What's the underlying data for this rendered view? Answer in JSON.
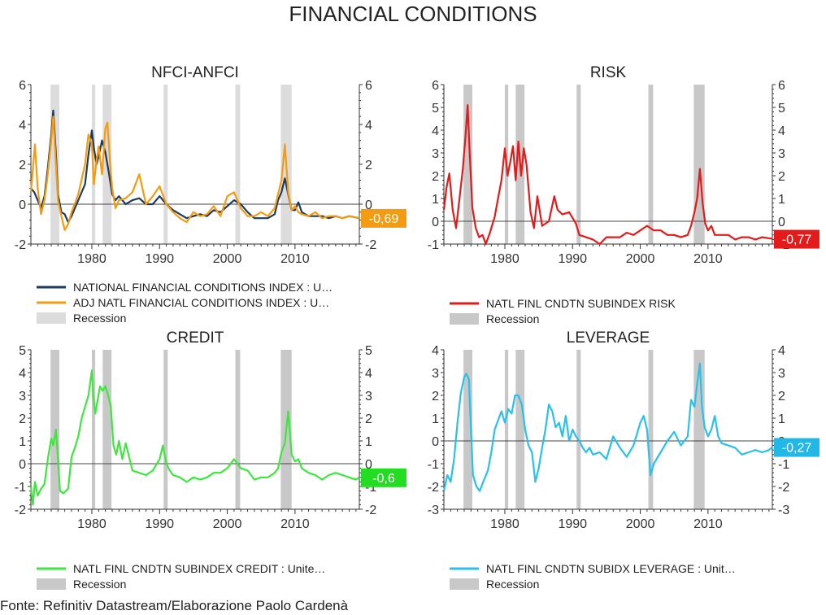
{
  "title": "FINANCIAL CONDITIONS",
  "source": "Fonte: Refinitiv Datastream/Elaborazione Paolo Cardenà",
  "colors": {
    "recession_light": "#dcdcdc",
    "recession_dark": "#c8c8c8"
  },
  "chart_data": [
    {
      "id": "nfci",
      "type": "line",
      "title": "NFCI-ANFCI",
      "ylim": [
        -2,
        6
      ],
      "yticks": [
        -2,
        0,
        2,
        4,
        6
      ],
      "xlim": [
        1971,
        2019.5
      ],
      "xticks": [
        1980,
        1990,
        2000,
        2010
      ],
      "recessions": [
        [
          1973.9,
          1975.2
        ],
        [
          1980.0,
          1980.5
        ],
        [
          1981.6,
          1982.9
        ],
        [
          1990.6,
          1991.2
        ],
        [
          2001.2,
          2001.9
        ],
        [
          2007.9,
          2009.5
        ]
      ],
      "recession_color": "#dcdcdc",
      "end_label": "-0,69",
      "end_label_color": "#f39c12",
      "legend": [
        {
          "label": "NATIONAL FINANCIAL CONDITIONS INDEX : U…",
          "color": "#1f3a5f",
          "kind": "line"
        },
        {
          "label": "ADJ NATL FINANCIAL CONDITIONS INDEX : U…",
          "color": "#f39c12",
          "kind": "line"
        },
        {
          "label": "Recession",
          "color": "#dcdcdc",
          "kind": "box"
        }
      ],
      "series": [
        {
          "name": "NATIONAL FINANCIAL CONDITIONS INDEX",
          "color": "#1f3a5f",
          "x": [
            1971,
            1971.5,
            1972,
            1972.5,
            1973,
            1973.5,
            1974,
            1974.3,
            1974.7,
            1975,
            1975.5,
            1976,
            1976.5,
            1977,
            1978,
            1979,
            1979.5,
            1980,
            1980.3,
            1980.7,
            1981,
            1981.5,
            1982,
            1982.5,
            1983,
            1983.5,
            1984,
            1985,
            1986,
            1987,
            1988,
            1989,
            1990,
            1991,
            1992,
            1993,
            1994,
            1995,
            1996,
            1997,
            1998,
            1999,
            2000,
            2001,
            2002,
            2003,
            2004,
            2005,
            2006,
            2007,
            2007.5,
            2008,
            2008.5,
            2009,
            2009.5,
            2010,
            2010.5,
            2011,
            2012,
            2013,
            2014,
            2015,
            2016,
            2017,
            2018,
            2019.5
          ],
          "values": [
            0.8,
            0.6,
            0.2,
            -0.2,
            0.4,
            1.8,
            3.5,
            4.7,
            2.5,
            0.5,
            -0.4,
            -0.5,
            -0.9,
            -0.6,
            0.2,
            1.0,
            2.5,
            3.7,
            2.8,
            2.0,
            2.4,
            3.2,
            2.6,
            1.6,
            0.5,
            0.2,
            0.4,
            0.0,
            0.2,
            0.3,
            0.0,
            0.0,
            0.4,
            0.0,
            -0.3,
            -0.5,
            -0.7,
            -0.6,
            -0.5,
            -0.6,
            -0.3,
            -0.4,
            -0.1,
            0.2,
            0.0,
            -0.4,
            -0.7,
            -0.7,
            -0.7,
            -0.5,
            0.2,
            0.6,
            1.3,
            0.5,
            -0.3,
            -0.3,
            0.1,
            -0.4,
            -0.6,
            -0.6,
            -0.6,
            -0.7,
            -0.6,
            -0.7,
            -0.6,
            -0.7
          ]
        },
        {
          "name": "ADJ NATL FINANCIAL CONDITIONS INDEX",
          "color": "#f39c12",
          "x": [
            1971,
            1971.3,
            1971.6,
            1972,
            1972.5,
            1973,
            1973.5,
            1974,
            1974.3,
            1974.7,
            1975,
            1975.5,
            1976,
            1976.5,
            1977,
            1978,
            1979,
            1979.5,
            1980,
            1980.3,
            1980.7,
            1981,
            1981.5,
            1982,
            1982.3,
            1982.7,
            1983,
            1983.5,
            1984,
            1985,
            1986,
            1987,
            1988,
            1989,
            1990,
            1991,
            1992,
            1993,
            1994,
            1995,
            1996,
            1997,
            1998,
            1999,
            2000,
            2001,
            2002,
            2003,
            2004,
            2005,
            2006,
            2007,
            2007.5,
            2008,
            2008.5,
            2009,
            2009.5,
            2010,
            2010.5,
            2011,
            2012,
            2013,
            2014,
            2015,
            2016,
            2017,
            2018,
            2019.5
          ],
          "values": [
            0.6,
            1.8,
            3.0,
            0.8,
            -0.5,
            0.2,
            1.5,
            3.2,
            4.4,
            2.0,
            0.2,
            -0.6,
            -1.3,
            -1.0,
            -0.4,
            0.5,
            2.0,
            3.5,
            3.0,
            1.0,
            2.2,
            2.9,
            1.5,
            3.8,
            4.1,
            2.0,
            0.8,
            -0.2,
            0.2,
            0.3,
            0.6,
            1.5,
            0.0,
            0.4,
            0.9,
            0.0,
            -0.4,
            -0.7,
            -0.9,
            -0.4,
            -0.6,
            -0.5,
            -0.1,
            -0.6,
            0.4,
            0.6,
            -0.2,
            -0.6,
            -0.6,
            -0.4,
            -0.6,
            -0.2,
            0.5,
            1.2,
            3.0,
            0.6,
            -0.3,
            -0.1,
            -0.4,
            -0.5,
            -0.6,
            -0.4,
            -0.7,
            -0.6,
            -0.6,
            -0.7,
            -0.6,
            -0.69
          ]
        }
      ]
    },
    {
      "id": "risk",
      "type": "line",
      "title": "RISK",
      "ylim": [
        -1,
        6
      ],
      "yticks": [
        -1,
        0,
        1,
        2,
        3,
        4,
        5,
        6
      ],
      "xlim": [
        1971,
        2019.5
      ],
      "xticks": [
        1980,
        1990,
        2000,
        2010
      ],
      "recessions": [
        [
          1973.9,
          1975.2
        ],
        [
          1980.0,
          1980.5
        ],
        [
          1981.6,
          1982.9
        ],
        [
          1990.6,
          1991.2
        ],
        [
          2001.2,
          2001.9
        ],
        [
          2007.9,
          2009.5
        ]
      ],
      "recession_color": "#c8c8c8",
      "end_label": "-0,77",
      "end_label_color": "#e31b1b",
      "legend": [
        {
          "label": "NATL FINL CNDTN SUBINDEX RISK",
          "color": "#e31b1b",
          "kind": "line"
        },
        {
          "label": "Recession",
          "color": "#c8c8c8",
          "kind": "box"
        }
      ],
      "series": [
        {
          "name": "NATL FINL CNDTN SUBINDEX RISK",
          "color": "#e31b1b",
          "x": [
            1971,
            1971.4,
            1971.8,
            1972.3,
            1972.8,
            1973.3,
            1973.8,
            1974.2,
            1974.5,
            1974.8,
            1975.2,
            1975.7,
            1976.2,
            1976.7,
            1977.2,
            1977.8,
            1978.5,
            1979,
            1979.5,
            1980,
            1980.4,
            1980.8,
            1981.2,
            1981.6,
            1982,
            1982.4,
            1982.8,
            1983.2,
            1983.8,
            1984.3,
            1984.8,
            1985.5,
            1986.5,
            1987.3,
            1987.8,
            1988.5,
            1989.5,
            1990.5,
            1991,
            1992,
            1993,
            1994,
            1995,
            1996,
            1997,
            1998,
            1999,
            2000,
            2001,
            2002,
            2003,
            2004,
            2005,
            2006,
            2007,
            2007.5,
            2008,
            2008.4,
            2008.8,
            2009.2,
            2009.6,
            2010,
            2010.5,
            2011,
            2012,
            2013,
            2014,
            2015,
            2016,
            2017,
            2018,
            2019.5
          ],
          "values": [
            0.5,
            1.5,
            2.1,
            0.5,
            -0.3,
            1.0,
            2.3,
            3.8,
            5.1,
            3.0,
            0.6,
            -0.3,
            -0.7,
            -0.6,
            -1.0,
            -0.5,
            0.2,
            1.0,
            1.8,
            3.2,
            2.0,
            2.6,
            3.3,
            1.8,
            3.5,
            2.0,
            3.2,
            2.5,
            0.4,
            -0.3,
            1.1,
            -0.2,
            0.0,
            1.1,
            0.5,
            0.3,
            0.4,
            -0.1,
            -0.6,
            -0.7,
            -0.8,
            -1.0,
            -0.7,
            -0.7,
            -0.7,
            -0.5,
            -0.6,
            -0.4,
            -0.2,
            -0.4,
            -0.4,
            -0.6,
            -0.6,
            -0.7,
            -0.6,
            -0.2,
            0.4,
            1.0,
            2.3,
            0.8,
            -0.1,
            -0.4,
            -0.2,
            -0.6,
            -0.6,
            -0.6,
            -0.8,
            -0.7,
            -0.7,
            -0.8,
            -0.7,
            -0.77
          ]
        }
      ]
    },
    {
      "id": "credit",
      "type": "line",
      "title": "CREDIT",
      "ylim": [
        -2,
        5
      ],
      "yticks": [
        -2,
        -1,
        0,
        1,
        2,
        3,
        4,
        5
      ],
      "xlim": [
        1971,
        2019.5
      ],
      "xticks": [
        1980,
        1990,
        2000,
        2010
      ],
      "recessions": [
        [
          1973.9,
          1975.2
        ],
        [
          1980.0,
          1980.5
        ],
        [
          1981.6,
          1982.9
        ],
        [
          1990.6,
          1991.2
        ],
        [
          2001.2,
          2001.9
        ],
        [
          2007.9,
          2009.5
        ]
      ],
      "recession_color": "#c8c8c8",
      "end_label": "-0,6",
      "end_label_color": "#22dd22",
      "legend": [
        {
          "label": "NATL FINL CNDTN SUBINDEX CREDIT : Unite…",
          "color": "#3ee63e",
          "kind": "line"
        },
        {
          "label": "Recession",
          "color": "#c8c8c8",
          "kind": "box"
        }
      ],
      "series": [
        {
          "name": "NATL FINL CNDTN SUBINDEX CREDIT",
          "color": "#3ee63e",
          "x": [
            1971,
            1971.3,
            1971.6,
            1972,
            1972.5,
            1973,
            1973.5,
            1974,
            1974.3,
            1974.7,
            1975,
            1975.3,
            1975.8,
            1976.5,
            1977,
            1977.5,
            1978,
            1978.5,
            1979,
            1979.5,
            1980,
            1980.2,
            1980.5,
            1980.8,
            1981.2,
            1981.6,
            1982,
            1982.4,
            1982.8,
            1983.2,
            1983.6,
            1984,
            1984.5,
            1985,
            1985.5,
            1986,
            1987,
            1988,
            1989,
            1990,
            1990.5,
            1991,
            1991.5,
            1992,
            1993,
            1994,
            1995,
            1996,
            1997,
            1998,
            1999,
            2000,
            2001,
            2002,
            2003,
            2004,
            2005,
            2006,
            2007,
            2007.5,
            2008,
            2008.5,
            2009,
            2009.5,
            2010,
            2010.5,
            2011,
            2012,
            2013,
            2014,
            2015,
            2016,
            2017,
            2018,
            2019,
            2019.5
          ],
          "values": [
            -1.0,
            -1.8,
            -0.8,
            -1.4,
            -1.1,
            -0.9,
            0.2,
            1.1,
            0.8,
            1.5,
            0.2,
            -1.2,
            -1.3,
            -1.1,
            0.3,
            0.7,
            1.2,
            2.0,
            2.5,
            3.0,
            4.1,
            3.0,
            2.2,
            2.7,
            3.4,
            3.2,
            3.4,
            3.0,
            2.5,
            0.8,
            0.4,
            1.0,
            0.2,
            0.9,
            0.3,
            -0.3,
            -0.4,
            -0.5,
            -0.3,
            0.2,
            0.8,
            0.0,
            -0.3,
            -0.5,
            -0.6,
            -0.8,
            -0.6,
            -0.7,
            -0.6,
            -0.4,
            -0.4,
            -0.2,
            0.2,
            -0.2,
            -0.3,
            -0.7,
            -0.6,
            -0.6,
            -0.4,
            -0.2,
            0.5,
            0.9,
            2.3,
            0.4,
            0.1,
            0.2,
            -0.2,
            -0.4,
            -0.5,
            -0.7,
            -0.5,
            -0.4,
            -0.5,
            -0.6,
            -0.7,
            -0.6
          ]
        }
      ]
    },
    {
      "id": "leverage",
      "type": "line",
      "title": "LEVERAGE",
      "ylim": [
        -3,
        4
      ],
      "yticks": [
        -3,
        -2,
        -1,
        0,
        1,
        2,
        3,
        4
      ],
      "xlim": [
        1971,
        2019.5
      ],
      "xticks": [
        1980,
        1990,
        2000,
        2010
      ],
      "recessions": [
        [
          1973.9,
          1975.2
        ],
        [
          1980.0,
          1980.5
        ],
        [
          1981.6,
          1982.9
        ],
        [
          1990.6,
          1991.2
        ],
        [
          2001.2,
          2001.9
        ],
        [
          2007.9,
          2009.5
        ]
      ],
      "recession_color": "#c8c8c8",
      "end_label": "-0,27",
      "end_label_color": "#22b8e6",
      "legend": [
        {
          "label": "NATL FINL CNDTN SUBIDX LEVERAGE : Unit…",
          "color": "#29c0ea",
          "kind": "line"
        },
        {
          "label": "Recession",
          "color": "#c8c8c8",
          "kind": "box"
        }
      ],
      "series": [
        {
          "name": "NATL FINL CNDTN SUBIDX LEVERAGE",
          "color": "#29c0ea",
          "x": [
            1971,
            1971.5,
            1972,
            1972.5,
            1973,
            1973.5,
            1974,
            1974.3,
            1974.7,
            1975,
            1975.3,
            1975.8,
            1976.3,
            1976.8,
            1977.5,
            1978,
            1978.5,
            1979,
            1979.5,
            1980,
            1980.5,
            1981,
            1981.5,
            1982,
            1982.5,
            1983,
            1983.5,
            1984,
            1984.5,
            1985,
            1985.5,
            1986,
            1986.5,
            1987,
            1987.5,
            1988,
            1988.5,
            1989,
            1989.5,
            1990,
            1990.5,
            1991,
            1991.5,
            1992,
            1992.5,
            1993,
            1994,
            1995,
            1996,
            1997,
            1998,
            1999,
            1999.5,
            2000,
            2000.5,
            2001,
            2001.5,
            2002,
            2003,
            2004,
            2005,
            2006,
            2007,
            2007.5,
            2008,
            2008.4,
            2008.8,
            2009.1,
            2009.5,
            2010,
            2010.5,
            2011,
            2011.5,
            2012,
            2013,
            2014,
            2015,
            2016,
            2017,
            2018,
            2019,
            2019.5
          ],
          "values": [
            -2.2,
            -1.5,
            -1.8,
            -0.8,
            0.8,
            2.1,
            2.8,
            2.95,
            2.7,
            0.5,
            -1.5,
            -2.0,
            -2.2,
            -1.8,
            -1.3,
            -0.5,
            0.5,
            0.9,
            1.3,
            0.8,
            1.4,
            1.2,
            2.0,
            2.0,
            1.6,
            0.5,
            -0.2,
            -0.5,
            -1.8,
            -1.2,
            -0.3,
            0.5,
            1.6,
            1.3,
            0.6,
            0.8,
            0.2,
            1.1,
            0.0,
            0.5,
            0.2,
            0.0,
            -0.3,
            -0.5,
            -0.3,
            -0.6,
            -0.5,
            -0.8,
            0.2,
            -0.3,
            -0.7,
            -0.2,
            0.3,
            0.8,
            1.1,
            0.5,
            -1.5,
            -1.0,
            -0.5,
            0.0,
            0.4,
            -0.2,
            0.2,
            1.8,
            1.5,
            2.5,
            3.4,
            1.5,
            0.6,
            0.2,
            0.5,
            1.1,
            0.2,
            -0.1,
            -0.2,
            -0.3,
            -0.6,
            -0.5,
            -0.4,
            -0.5,
            -0.4,
            -0.27
          ]
        }
      ]
    }
  ]
}
